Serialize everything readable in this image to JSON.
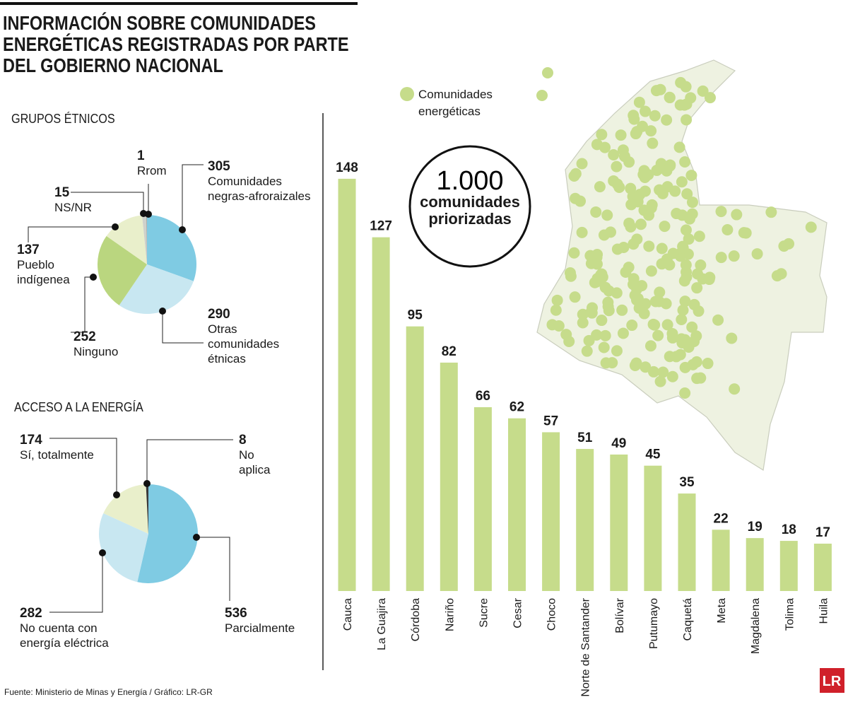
{
  "title": "INFORMACIÓN SOBRE COMUNIDADES ENERGÉTICAS REGISTRADAS POR PARTE DEL GOBIERNO NACIONAL",
  "source": "Fuente: Ministerio de Minas y Energía / Gráfico: LR-GR",
  "logo": "LR",
  "map": {
    "legend": "Comunidades energéticas"
  },
  "callout": {
    "number": "1.000",
    "text": "comunidades priorizadas"
  },
  "chart_data": [
    {
      "type": "pie",
      "title": "GRUPOS ÉTNICOS",
      "categories": [
        "Comunidades negras-afroraizales",
        "Otras comunidades étnicas",
        "Ninguno",
        "Pueblo indígenea",
        "NS/NR",
        "Rrom"
      ],
      "values": [
        305,
        290,
        252,
        137,
        15,
        1
      ],
      "colors": [
        "#7fcbe3",
        "#c8e7f1",
        "#bad67f",
        "#e9efcb",
        "#cfd1cb",
        "#6b6b6b"
      ]
    },
    {
      "type": "pie",
      "title": "ACCESO A LA ENERGÍA",
      "categories": [
        "Parcialmente",
        "No cuenta con energía eléctrica",
        "Sí, totalmente",
        "No aplica"
      ],
      "values": [
        536,
        282,
        174,
        8
      ],
      "colors": [
        "#7fcbe3",
        "#c8e7f1",
        "#e9efcb",
        "#3a3a3a"
      ]
    },
    {
      "type": "bar",
      "categories": [
        "Cauca",
        "La Guajira",
        "Córdoba",
        "Nariño",
        "Sucre",
        "Cesar",
        "Choco",
        "Norte de Santander",
        "Bolívar",
        "Putumayo",
        "Caquetá",
        "Meta",
        "Magdalena",
        "Tolima",
        "Huila"
      ],
      "values": [
        148,
        127,
        95,
        82,
        66,
        62,
        57,
        51,
        49,
        45,
        35,
        22,
        19,
        18,
        17
      ],
      "color": "#c6dc8b"
    }
  ]
}
